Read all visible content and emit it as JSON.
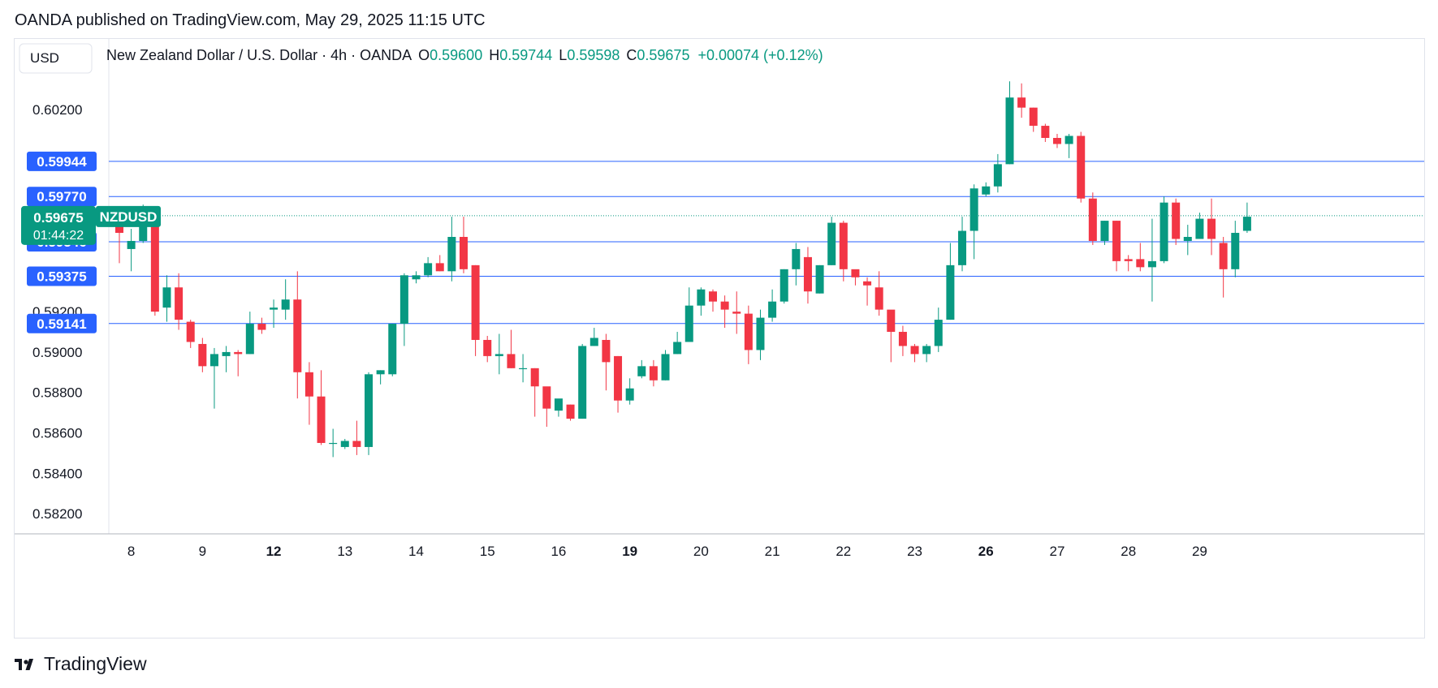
{
  "publisher": {
    "text": "OANDA published on TradingView.com, May 29, 2025 11:15 UTC"
  },
  "currency_button": "USD",
  "symbol_title": {
    "name": "New Zealand Dollar / U.S. Dollar · 4h · OANDA",
    "open_label": "O",
    "open": "0.59600",
    "high_label": "H",
    "high": "0.59744",
    "low_label": "L",
    "low": "0.59598",
    "close_label": "C",
    "close": "0.59675",
    "change": "+0.00074 (+0.12%)"
  },
  "price_badge": {
    "value": "0.59675",
    "symbol": "NZDUSD",
    "countdown": "01:44:22"
  },
  "footer": {
    "brand": "TradingView"
  },
  "colors": {
    "up": "#089981",
    "down": "#f23645",
    "hline": "#2962ff",
    "text": "#131722",
    "grid": "#e0e3eb"
  },
  "chart_data": {
    "type": "candlestick",
    "symbol": "NZDUSD",
    "timeframe": "4h",
    "ylim": [
      0.581,
      0.6055
    ],
    "y_ticks": [
      "0.58200",
      "0.58400",
      "0.58600",
      "0.58800",
      "0.59000",
      "0.59200",
      "0.60200"
    ],
    "x_ticks": [
      {
        "label": "8",
        "i": 1,
        "bold": false
      },
      {
        "label": "9",
        "i": 7,
        "bold": false
      },
      {
        "label": "12",
        "i": 13,
        "bold": true
      },
      {
        "label": "13",
        "i": 19,
        "bold": false
      },
      {
        "label": "14",
        "i": 25,
        "bold": false
      },
      {
        "label": "15",
        "i": 31,
        "bold": false
      },
      {
        "label": "16",
        "i": 37,
        "bold": false
      },
      {
        "label": "19",
        "i": 43,
        "bold": true
      },
      {
        "label": "20",
        "i": 49,
        "bold": false
      },
      {
        "label": "21",
        "i": 55,
        "bold": false
      },
      {
        "label": "22",
        "i": 61,
        "bold": false
      },
      {
        "label": "23",
        "i": 67,
        "bold": false
      },
      {
        "label": "26",
        "i": 73,
        "bold": true
      },
      {
        "label": "27",
        "i": 79,
        "bold": false
      },
      {
        "label": "28",
        "i": 85,
        "bold": false
      },
      {
        "label": "29",
        "i": 91,
        "bold": false
      }
    ],
    "horizontal_lines": [
      {
        "label": "0.59944",
        "value": 0.59944
      },
      {
        "label": "0.59770",
        "value": 0.5977
      },
      {
        "label": "0.59546",
        "value": 0.59546
      },
      {
        "label": "0.59375",
        "value": 0.59375
      },
      {
        "label": "0.59141",
        "value": 0.59141
      }
    ],
    "last_price": 0.59675,
    "candles": [
      [
        0.5964,
        0.5959,
        0.5968,
        0.5944
      ],
      [
        0.5951,
        0.5955,
        0.5961,
        0.594
      ],
      [
        0.5955,
        0.5967,
        0.5973,
        0.5954
      ],
      [
        0.5966,
        0.592,
        0.5968,
        0.5918
      ],
      [
        0.5922,
        0.5932,
        0.5938,
        0.5915
      ],
      [
        0.5932,
        0.5916,
        0.5939,
        0.5911
      ],
      [
        0.5915,
        0.5905,
        0.5916,
        0.5902
      ],
      [
        0.5904,
        0.5893,
        0.5907,
        0.589
      ],
      [
        0.5893,
        0.5899,
        0.5902,
        0.5872
      ],
      [
        0.5898,
        0.59,
        0.5903,
        0.589
      ],
      [
        0.59,
        0.5899,
        0.5901,
        0.5888
      ],
      [
        0.5899,
        0.5914,
        0.592,
        0.5899
      ],
      [
        0.5914,
        0.5911,
        0.5917,
        0.5909
      ],
      [
        0.5921,
        0.5922,
        0.5926,
        0.5912
      ],
      [
        0.5921,
        0.5926,
        0.5936,
        0.5916
      ],
      [
        0.5926,
        0.589,
        0.594,
        0.5877
      ],
      [
        0.589,
        0.5878,
        0.5895,
        0.5864
      ],
      [
        0.5878,
        0.5855,
        0.5891,
        0.5854
      ],
      [
        0.5855,
        0.5855,
        0.5862,
        0.5848
      ],
      [
        0.5853,
        0.5856,
        0.5857,
        0.5852
      ],
      [
        0.5856,
        0.5853,
        0.5866,
        0.5849
      ],
      [
        0.5853,
        0.5889,
        0.589,
        0.5849
      ],
      [
        0.5889,
        0.5891,
        0.5891,
        0.5884
      ],
      [
        0.5889,
        0.5914,
        0.5914,
        0.5888
      ],
      [
        0.5914,
        0.5938,
        0.5939,
        0.5903
      ],
      [
        0.5936,
        0.5938,
        0.594,
        0.5934
      ],
      [
        0.5938,
        0.5944,
        0.5947,
        0.5937
      ],
      [
        0.5944,
        0.594,
        0.5948,
        0.594
      ],
      [
        0.594,
        0.5957,
        0.5967,
        0.5935
      ],
      [
        0.5957,
        0.5941,
        0.5967,
        0.5939
      ],
      [
        0.5943,
        0.5906,
        0.5943,
        0.5898
      ],
      [
        0.5906,
        0.5898,
        0.5908,
        0.5895
      ],
      [
        0.5898,
        0.5899,
        0.5909,
        0.5889
      ],
      [
        0.5899,
        0.5892,
        0.5911,
        0.5892
      ],
      [
        0.5892,
        0.5892,
        0.5899,
        0.5885
      ],
      [
        0.5892,
        0.5883,
        0.5892,
        0.5868
      ],
      [
        0.5883,
        0.5872,
        0.5882,
        0.5863
      ],
      [
        0.5871,
        0.5877,
        0.5876,
        0.5868
      ],
      [
        0.5874,
        0.5867,
        0.5874,
        0.5866
      ],
      [
        0.5867,
        0.5903,
        0.5904,
        0.5867
      ],
      [
        0.5903,
        0.5907,
        0.5912,
        0.5903
      ],
      [
        0.5906,
        0.5895,
        0.5909,
        0.5881
      ],
      [
        0.5898,
        0.5876,
        0.5898,
        0.587
      ],
      [
        0.5876,
        0.5882,
        0.5887,
        0.5874
      ],
      [
        0.5888,
        0.5893,
        0.5896,
        0.5887
      ],
      [
        0.5893,
        0.5886,
        0.5896,
        0.5883
      ],
      [
        0.5886,
        0.5899,
        0.5901,
        0.5886
      ],
      [
        0.5899,
        0.5905,
        0.591,
        0.5899
      ],
      [
        0.5905,
        0.5923,
        0.5932,
        0.5905
      ],
      [
        0.5923,
        0.5931,
        0.5932,
        0.5918
      ],
      [
        0.593,
        0.5925,
        0.5931,
        0.592
      ],
      [
        0.5925,
        0.5921,
        0.5928,
        0.5912
      ],
      [
        0.592,
        0.5919,
        0.593,
        0.5909
      ],
      [
        0.5919,
        0.5901,
        0.5923,
        0.5894
      ],
      [
        0.5901,
        0.5917,
        0.5921,
        0.5896
      ],
      [
        0.5917,
        0.5925,
        0.5931,
        0.5915
      ],
      [
        0.5925,
        0.5941,
        0.5941,
        0.5924
      ],
      [
        0.5941,
        0.5951,
        0.5954,
        0.5933
      ],
      [
        0.5947,
        0.593,
        0.5952,
        0.5924
      ],
      [
        0.5929,
        0.5943,
        0.5943,
        0.5929
      ],
      [
        0.5943,
        0.5964,
        0.5967,
        0.5943
      ],
      [
        0.5964,
        0.5941,
        0.5965,
        0.5935
      ],
      [
        0.5941,
        0.5937,
        0.594,
        0.5933
      ],
      [
        0.5935,
        0.5933,
        0.5937,
        0.5923
      ],
      [
        0.5932,
        0.5921,
        0.594,
        0.5918
      ],
      [
        0.5921,
        0.591,
        0.592,
        0.5895
      ],
      [
        0.591,
        0.5903,
        0.5913,
        0.5898
      ],
      [
        0.5903,
        0.5899,
        0.5904,
        0.5895
      ],
      [
        0.5899,
        0.5903,
        0.5904,
        0.5895
      ],
      [
        0.5903,
        0.5916,
        0.5922,
        0.59
      ],
      [
        0.5916,
        0.5943,
        0.5954,
        0.5916
      ],
      [
        0.5943,
        0.596,
        0.5967,
        0.594
      ],
      [
        0.596,
        0.5981,
        0.5983,
        0.5946
      ],
      [
        0.5978,
        0.5982,
        0.5984,
        0.5977
      ],
      [
        0.5982,
        0.5993,
        0.5998,
        0.5979
      ],
      [
        0.5993,
        0.6026,
        0.6034,
        0.5993
      ],
      [
        0.6026,
        0.6021,
        0.6033,
        0.6016
      ],
      [
        0.6021,
        0.6012,
        0.6021,
        0.6009
      ],
      [
        0.6012,
        0.6006,
        0.6013,
        0.6004
      ],
      [
        0.6006,
        0.6003,
        0.6008,
        0.6001
      ],
      [
        0.6003,
        0.6007,
        0.6008,
        0.5996
      ],
      [
        0.6007,
        0.5976,
        0.6009,
        0.5974
      ],
      [
        0.5976,
        0.5955,
        0.5979,
        0.5953
      ],
      [
        0.5955,
        0.5965,
        0.5965,
        0.5953
      ],
      [
        0.5965,
        0.5945,
        0.5965,
        0.594
      ],
      [
        0.5946,
        0.5945,
        0.5948,
        0.594
      ],
      [
        0.5946,
        0.5942,
        0.5954,
        0.594
      ],
      [
        0.5942,
        0.5945,
        0.5966,
        0.5925
      ],
      [
        0.5945,
        0.5974,
        0.5977,
        0.5944
      ],
      [
        0.5974,
        0.5956,
        0.5976,
        0.5953
      ],
      [
        0.5955,
        0.5957,
        0.5963,
        0.5948
      ],
      [
        0.5956,
        0.5966,
        0.5969,
        0.5956
      ],
      [
        0.5966,
        0.5956,
        0.5976,
        0.5948
      ],
      [
        0.5954,
        0.5941,
        0.5957,
        0.5927
      ],
      [
        0.5941,
        0.5959,
        0.5965,
        0.5937
      ],
      [
        0.596,
        0.5967,
        0.5974,
        0.5959
      ]
    ]
  }
}
